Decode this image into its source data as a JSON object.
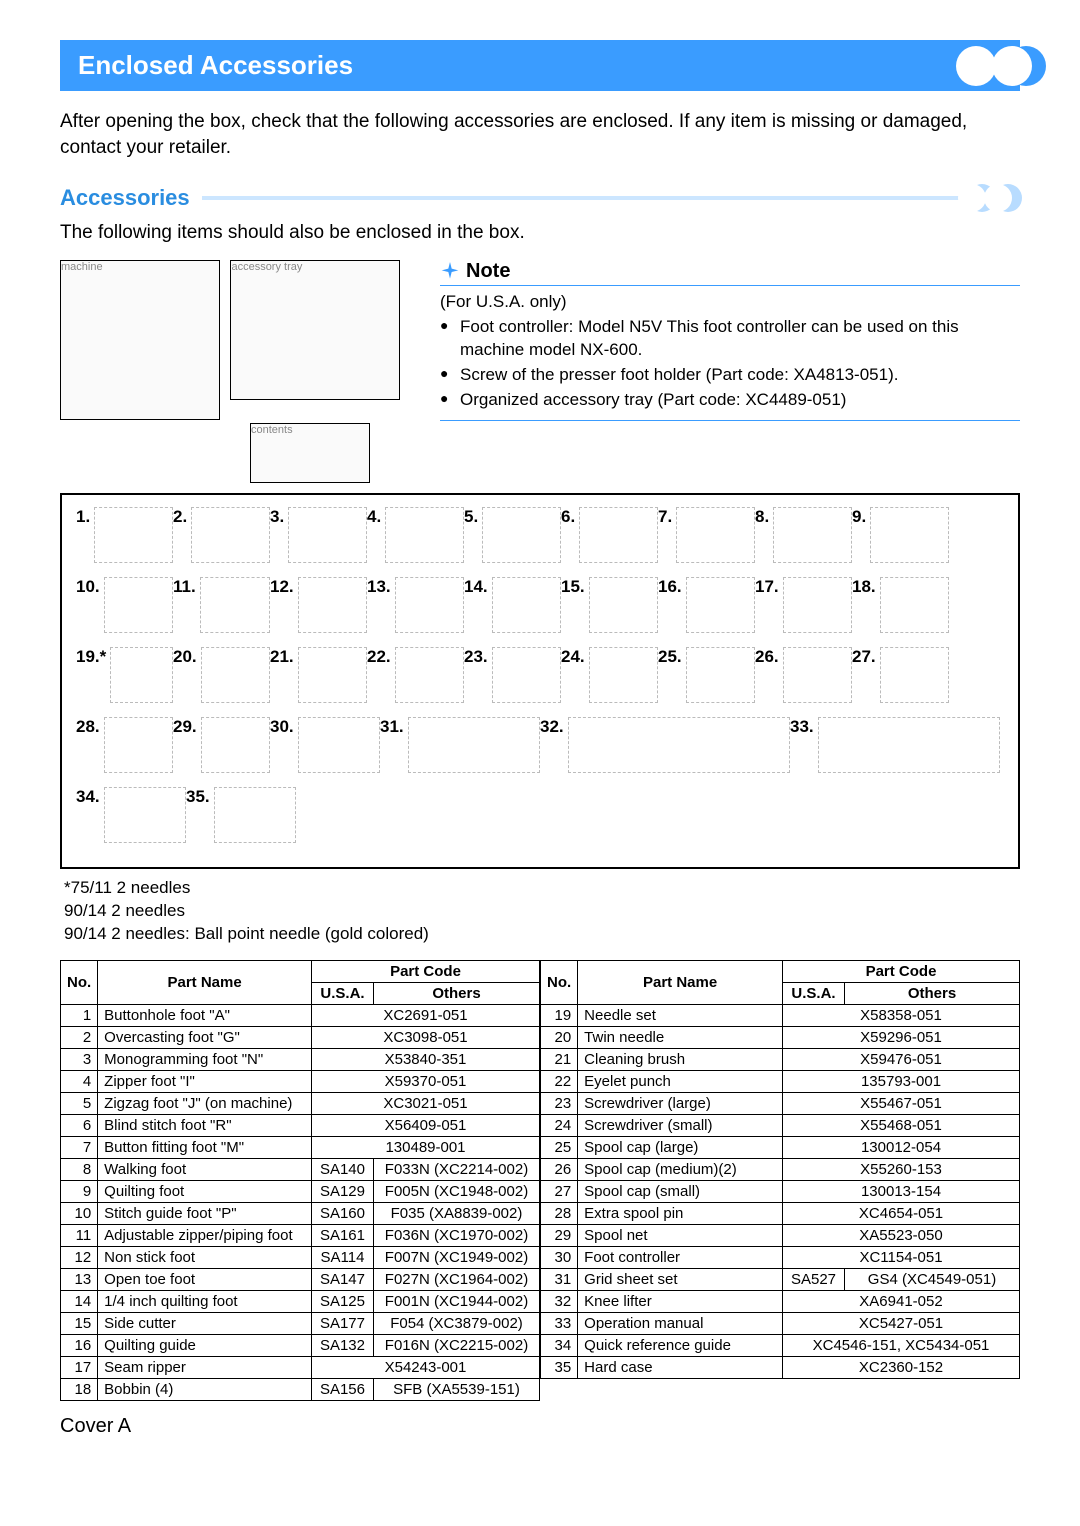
{
  "title_bar": "Enclosed Accessories",
  "intro": "After opening the box, check that the following accessories are enclosed. If any item is missing or damaged, contact your retailer.",
  "section_title": "Accessories",
  "subtext": "The following items should also be enclosed in the box.",
  "note": {
    "title": "Note",
    "usa": "(For U.S.A. only)",
    "items": [
      "Foot controller: Model N5V This foot controller can be used on this machine model NX-600.",
      "Screw of the presser foot holder (Part code: XA4813-051).",
      "Organized accessory tray (Part code: XC4489-051)"
    ]
  },
  "item_numbers": [
    "1.",
    "2.",
    "3.",
    "4.",
    "5.",
    "6.",
    "7.",
    "8.",
    "9.",
    "10.",
    "11.",
    "12.",
    "13.",
    "14.",
    "15.",
    "16.",
    "17.",
    "18.",
    "19.*",
    "20.",
    "21.",
    "22.",
    "23.",
    "24.",
    "25.",
    "26.",
    "27.",
    "28.",
    "29.",
    "30.",
    "31.",
    "32.",
    "33.",
    "34.",
    "35."
  ],
  "needle_notes": [
    "*75/11 2 needles",
    "90/14 2 needles",
    "90/14 2 needles: Ball point needle (gold colored)"
  ],
  "table_headers": {
    "no": "No.",
    "part_name": "Part Name",
    "part_code": "Part Code",
    "usa": "U.S.A.",
    "others": "Others"
  },
  "rows_left": [
    {
      "no": "1",
      "name": "Buttonhole foot \"A\"",
      "usa": "",
      "others": "XC2691-051",
      "span": true
    },
    {
      "no": "2",
      "name": "Overcasting foot \"G\"",
      "usa": "",
      "others": "XC3098-051",
      "span": true
    },
    {
      "no": "3",
      "name": "Monogramming foot \"N\"",
      "usa": "",
      "others": "X53840-351",
      "span": true
    },
    {
      "no": "4",
      "name": "Zipper foot \"I\"",
      "usa": "",
      "others": "X59370-051",
      "span": true
    },
    {
      "no": "5",
      "name": "Zigzag foot \"J\" (on machine)",
      "usa": "",
      "others": "XC3021-051",
      "span": true
    },
    {
      "no": "6",
      "name": "Blind stitch foot \"R\"",
      "usa": "",
      "others": "X56409-051",
      "span": true
    },
    {
      "no": "7",
      "name": "Button fitting foot \"M\"",
      "usa": "",
      "others": "130489-001",
      "span": true
    },
    {
      "no": "8",
      "name": "Walking foot",
      "usa": "SA140",
      "others": "F033N (XC2214-002)",
      "span": false
    },
    {
      "no": "9",
      "name": "Quilting foot",
      "usa": "SA129",
      "others": "F005N (XC1948-002)",
      "span": false
    },
    {
      "no": "10",
      "name": "Stitch guide foot \"P\"",
      "usa": "SA160",
      "others": "F035 (XA8839-002)",
      "span": false
    },
    {
      "no": "11",
      "name": "Adjustable zipper/piping foot",
      "usa": "SA161",
      "others": "F036N (XC1970-002)",
      "span": false
    },
    {
      "no": "12",
      "name": "Non stick foot",
      "usa": "SA114",
      "others": "F007N (XC1949-002)",
      "span": false
    },
    {
      "no": "13",
      "name": "Open toe foot",
      "usa": "SA147",
      "others": "F027N (XC1964-002)",
      "span": false
    },
    {
      "no": "14",
      "name": "1/4 inch quilting foot",
      "usa": "SA125",
      "others": "F001N (XC1944-002)",
      "span": false
    },
    {
      "no": "15",
      "name": "Side cutter",
      "usa": "SA177",
      "others": "F054 (XC3879-002)",
      "span": false
    },
    {
      "no": "16",
      "name": "Quilting guide",
      "usa": "SA132",
      "others": "F016N (XC2215-002)",
      "span": false
    },
    {
      "no": "17",
      "name": "Seam ripper",
      "usa": "",
      "others": "X54243-001",
      "span": true
    },
    {
      "no": "18",
      "name": "Bobbin (4)",
      "usa": "SA156",
      "others": "SFB (XA5539-151)",
      "span": false
    }
  ],
  "rows_right": [
    {
      "no": "19",
      "name": "Needle set",
      "usa": "",
      "others": "X58358-051",
      "span": true
    },
    {
      "no": "20",
      "name": "Twin needle",
      "usa": "",
      "others": "X59296-051",
      "span": true
    },
    {
      "no": "21",
      "name": "Cleaning brush",
      "usa": "",
      "others": "X59476-051",
      "span": true
    },
    {
      "no": "22",
      "name": "Eyelet punch",
      "usa": "",
      "others": "135793-001",
      "span": true
    },
    {
      "no": "23",
      "name": "Screwdriver (large)",
      "usa": "",
      "others": "X55467-051",
      "span": true
    },
    {
      "no": "24",
      "name": "Screwdriver (small)",
      "usa": "",
      "others": "X55468-051",
      "span": true
    },
    {
      "no": "25",
      "name": "Spool cap (large)",
      "usa": "",
      "others": "130012-054",
      "span": true
    },
    {
      "no": "26",
      "name": "Spool cap (medium)(2)",
      "usa": "",
      "others": "X55260-153",
      "span": true
    },
    {
      "no": "27",
      "name": "Spool cap (small)",
      "usa": "",
      "others": "130013-154",
      "span": true
    },
    {
      "no": "28",
      "name": "Extra spool pin",
      "usa": "",
      "others": "XC4654-051",
      "span": true
    },
    {
      "no": "29",
      "name": "Spool net",
      "usa": "",
      "others": "XA5523-050",
      "span": true
    },
    {
      "no": "30",
      "name": "Foot controller",
      "usa": "",
      "others": "XC1154-051",
      "span": true
    },
    {
      "no": "31",
      "name": "Grid sheet set",
      "usa": "SA527",
      "others": "GS4 (XC4549-051)",
      "span": false
    },
    {
      "no": "32",
      "name": "Knee lifter",
      "usa": "",
      "others": "XA6941-052",
      "span": true
    },
    {
      "no": "33",
      "name": "Operation manual",
      "usa": "",
      "others": "XC5427-051",
      "span": true
    },
    {
      "no": "34",
      "name": "Quick reference guide",
      "usa": "",
      "others": "XC4546-151, XC5434-051",
      "span": true
    },
    {
      "no": "35",
      "name": "Hard case",
      "usa": "",
      "others": "XC2360-152",
      "span": true
    }
  ],
  "cover": "Cover A",
  "colors": {
    "blue": "#3a9cff",
    "lightblue": "#cce6ff",
    "text": "#000000",
    "bg": "#ffffff"
  }
}
